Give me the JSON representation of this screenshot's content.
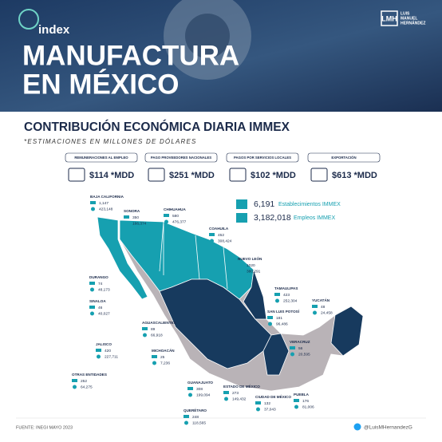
{
  "header": {
    "logo": "index",
    "title_lines": [
      "MANUFACTURA",
      "EN MÉXICO"
    ],
    "brand_mark": "LMH",
    "brand_name": [
      "LUIS",
      "MANUEL",
      "HERNÁNDEZ"
    ]
  },
  "subtitle": "CONTRIBUCIÓN ECONÓMICA DIARIA IMMEX",
  "note": "*ESTIMACIONES EN MILLONES DE DÓLARES",
  "metrics": [
    {
      "label": "REMUNERACIONES AL EMPLEO",
      "value": "$114 *MDD"
    },
    {
      "label": "PAGO PROVEEDORES NACIONALES",
      "value": "$251 *MDD"
    },
    {
      "label": "PAGOS POR SERVICIOS LOCALES",
      "value": "$102 *MDD"
    },
    {
      "label": "EXPORTACIÓN",
      "value": "$613 *MDD"
    }
  ],
  "totals": [
    {
      "value": "6,191",
      "label": "Establecimientos IMMEX"
    },
    {
      "value": "3,182,018",
      "label": "Empleos IMMEX"
    }
  ],
  "states": [
    {
      "name": "BAJA CALIFORNIA",
      "establishments": "1,147",
      "employees": "423,148"
    },
    {
      "name": "SONORA",
      "establishments": "350",
      "employees": "166,374"
    },
    {
      "name": "CHIHUAHUA",
      "establishments": "580",
      "employees": "476,377"
    },
    {
      "name": "COAHUILA",
      "establishments": "452",
      "employees": "308,424"
    },
    {
      "name": "NUEVO LEÓN",
      "establishments": "1020",
      "employees": "380,291"
    },
    {
      "name": "DURANGO",
      "establishments": "74",
      "employees": "48,173"
    },
    {
      "name": "TAMAULIPAS",
      "establishments": "423",
      "employees": "252,304"
    },
    {
      "name": "SINALOA",
      "establishments": "46",
      "employees": "40,027"
    },
    {
      "name": "YUCATÁN",
      "establishments": "48",
      "employees": "24,458"
    },
    {
      "name": "SAN LUIS POTOSÍ",
      "establishments": "181",
      "employees": "96,486"
    },
    {
      "name": "AGUASCALIENTES",
      "establishments": "89",
      "employees": "66,918"
    },
    {
      "name": "VERACRUZ",
      "establishments": "56",
      "employees": "20,595"
    },
    {
      "name": "JALISCO",
      "establishments": "420",
      "employees": "227,711"
    },
    {
      "name": "MICHOACÁN",
      "establishments": "25",
      "employees": "7,236"
    },
    {
      "name": "OTRAS ENTIDADES",
      "establishments": "252",
      "employees": "64,275"
    },
    {
      "name": "GUANAJUATO",
      "establishments": "308",
      "employees": "199,094"
    },
    {
      "name": "ESTADO DE MÉXICO",
      "establishments": "273",
      "employees": "149,432"
    },
    {
      "name": "QUERÉTARO",
      "establishments": "248",
      "employees": "118,565"
    },
    {
      "name": "CIUDAD DE MÉXICO",
      "establishments": "132",
      "employees": "37,043"
    },
    {
      "name": "PUEBLA",
      "establishments": "176",
      "employees": "81,006"
    }
  ],
  "footer": {
    "source": "FUENTE: INEGI MAYO 2023",
    "handle": "@LuisMHernandezG"
  }
}
